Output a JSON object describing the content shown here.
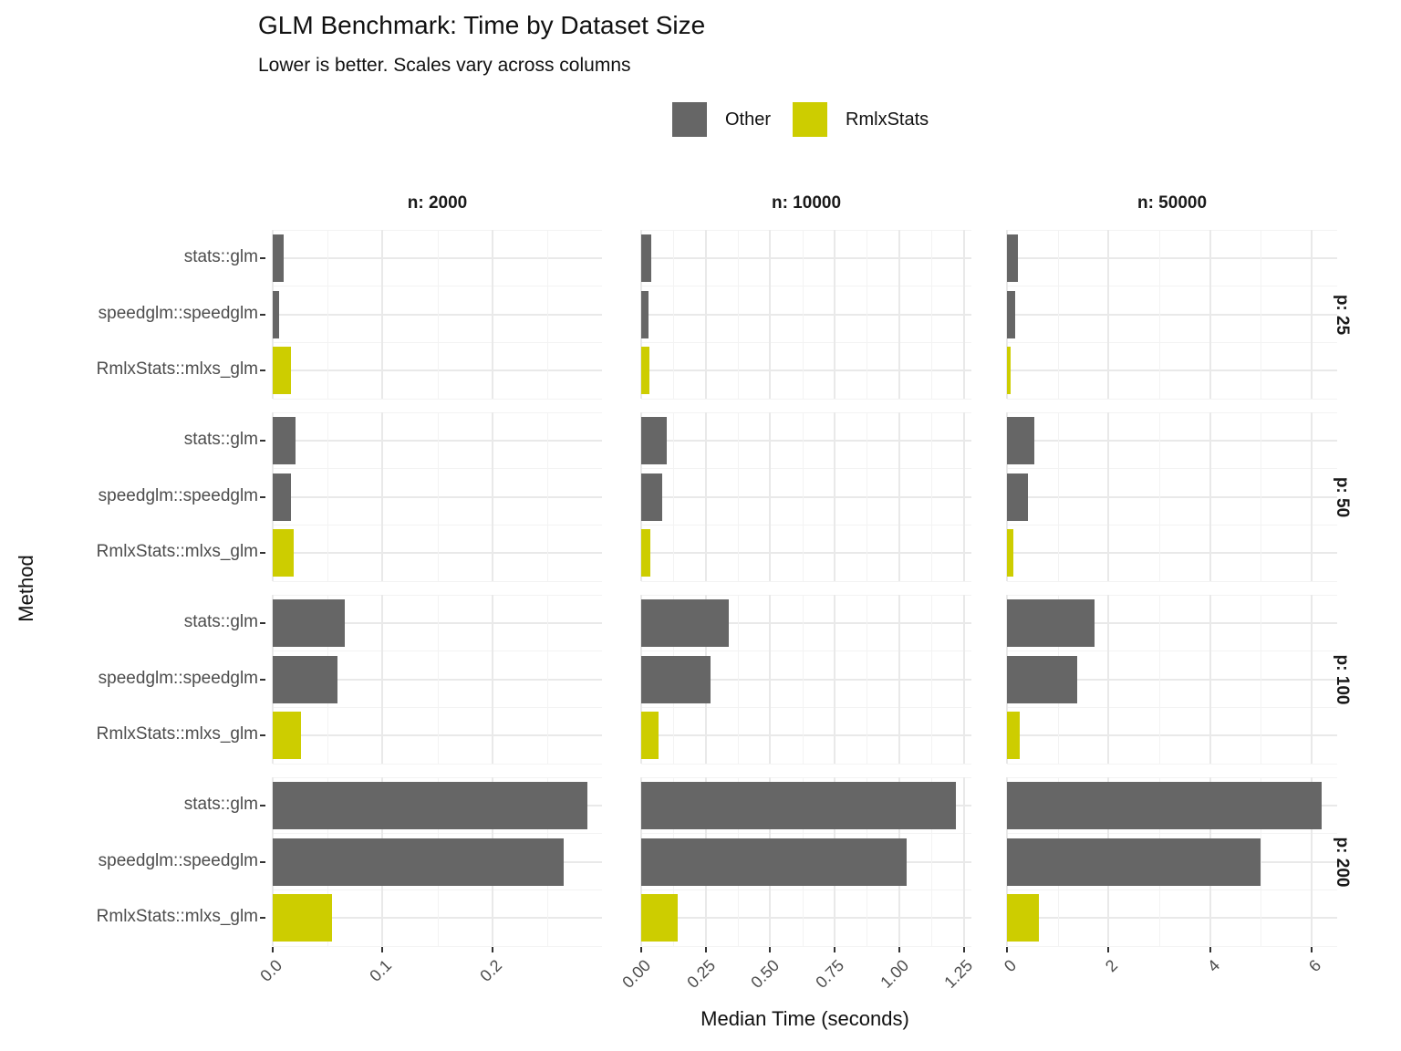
{
  "title": "GLM Benchmark: Time by Dataset Size",
  "subtitle": "Lower is better. Scales vary across columns",
  "legend": {
    "items": [
      {
        "label": "Other",
        "color": "#666666"
      },
      {
        "label": "RmlxStats",
        "color": "#CDCD00"
      }
    ]
  },
  "axes": {
    "x_title": "Median Time (seconds)",
    "y_title": "Method"
  },
  "chart_data": {
    "type": "bar",
    "orientation": "horizontal",
    "title": "GLM Benchmark: Time by Dataset Size",
    "subtitle": "Lower is better. Scales vary across columns",
    "xlabel": "Median Time (seconds)",
    "ylabel": "Method",
    "grid": true,
    "legend_position": "top",
    "categories": [
      "stats::glm",
      "speedglm::speedglm",
      "RmlxStats::mlxs_glm"
    ],
    "category_colors": [
      "#666666",
      "#666666",
      "#CDCD00"
    ],
    "series_legend": [
      {
        "name": "Other",
        "color": "#666666"
      },
      {
        "name": "RmlxStats",
        "color": "#CDCD00"
      }
    ],
    "facet_columns": [
      {
        "label": "n: 2000",
        "xlim": [
          0,
          0.3
        ],
        "ticks": [
          0,
          0.1,
          0.2
        ],
        "tick_labels": [
          "0.0",
          "0.1",
          "0.2"
        ],
        "minor_step": 0.05
      },
      {
        "label": "n: 10000",
        "xlim": [
          0,
          1.28
        ],
        "ticks": [
          0,
          0.25,
          0.5,
          0.75,
          1.0,
          1.25
        ],
        "tick_labels": [
          "0.00",
          "0.25",
          "0.50",
          "0.75",
          "1.00",
          "1.25"
        ],
        "minor_step": 0.125
      },
      {
        "label": "n: 50000",
        "xlim": [
          0,
          6.5
        ],
        "ticks": [
          0,
          2,
          4,
          6
        ],
        "tick_labels": [
          "0",
          "2",
          "4",
          "6"
        ],
        "minor_step": 1
      }
    ],
    "facet_rows": [
      {
        "label": "p: 25"
      },
      {
        "label": "p: 50"
      },
      {
        "label": "p: 100"
      },
      {
        "label": "p: 200"
      }
    ],
    "values_seconds": [
      [
        [
          0.01,
          0.006,
          0.017
        ],
        [
          0.04,
          0.028,
          0.031
        ],
        [
          0.21,
          0.16,
          0.08
        ]
      ],
      [
        [
          0.021,
          0.017,
          0.019
        ],
        [
          0.1,
          0.08,
          0.037
        ],
        [
          0.53,
          0.42,
          0.13
        ]
      ],
      [
        [
          0.066,
          0.059,
          0.026
        ],
        [
          0.34,
          0.27,
          0.067
        ],
        [
          1.72,
          1.38,
          0.25
        ]
      ],
      [
        [
          0.287,
          0.265,
          0.054
        ],
        [
          1.22,
          1.03,
          0.14
        ],
        [
          6.2,
          5.0,
          0.62
        ]
      ]
    ]
  }
}
